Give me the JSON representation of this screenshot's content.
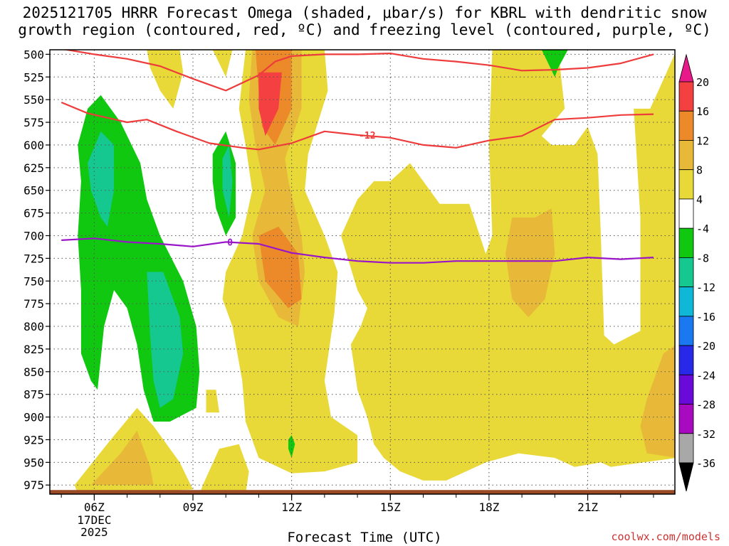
{
  "title_line1": "2025121705 HRRR Forecast Omega (shaded, μbar/s) for KBRL with dendritic snow",
  "title_line2": "growth region (contoured, red, ºC) and freezing level (contoured, purple, ºC)",
  "xlabel": "Forecast Time (UTC)",
  "credit": "coolwx.com/models",
  "date_label_day": "17DEC",
  "date_label_year": "2025",
  "colors": {
    "dgz_contour": "#ee3b3b",
    "freezing_contour": "#9a14c8",
    "ground": "#9b4a26",
    "grid": "#555555"
  },
  "chart_data": {
    "type": "heatmap",
    "title": "2025121705 HRRR Forecast Omega (shaded, μbar/s) for KBRL with dendritic snow growth region (contoured, red, ºC) and freezing level (contoured, purple, ºC)",
    "xlabel": "Forecast Time (UTC)",
    "ylabel": "",
    "x_hours": [
      5,
      6,
      7,
      8,
      9,
      10,
      11,
      12,
      13,
      14,
      15,
      16,
      17,
      18,
      19,
      20,
      21,
      22,
      23
    ],
    "x_ticks": [
      {
        "hour": 6,
        "label": "06Z"
      },
      {
        "hour": 9,
        "label": "09Z"
      },
      {
        "hour": 12,
        "label": "12Z"
      },
      {
        "hour": 15,
        "label": "15Z"
      },
      {
        "hour": 18,
        "label": "18Z"
      },
      {
        "hour": 21,
        "label": "21Z"
      }
    ],
    "y_levels": [
      500,
      525,
      550,
      575,
      600,
      625,
      650,
      675,
      700,
      725,
      750,
      775,
      800,
      825,
      850,
      875,
      900,
      925,
      950,
      975
    ],
    "y_range_mb": [
      495,
      985
    ],
    "colorbar": {
      "levels": [
        -36,
        -32,
        -28,
        -24,
        -20,
        -16,
        -12,
        -8,
        -4,
        4,
        8,
        12,
        16,
        20
      ],
      "colors": [
        "#a8a8a8",
        "#a80ac0",
        "#6a0ad8",
        "#2828e8",
        "#1a78f0",
        "#10b8d8",
        "#14c890",
        "#10c810",
        "#ffffff",
        "#e8d838",
        "#e8b838",
        "#ec8a2a",
        "#f44040",
        "#e81a8a"
      ],
      "below_color": "#000000",
      "above_color": "#e81a8a"
    },
    "contours": [
      {
        "label": "-12",
        "color": "dgz",
        "points": [
          [
            5,
            553
          ],
          [
            5.8,
            565
          ],
          [
            7,
            575
          ],
          [
            7.6,
            572
          ],
          [
            8.5,
            585
          ],
          [
            9.5,
            598
          ],
          [
            10.5,
            603
          ],
          [
            11,
            605
          ],
          [
            12,
            598
          ],
          [
            13,
            585
          ],
          [
            14,
            589
          ],
          [
            15,
            592
          ],
          [
            16,
            600
          ],
          [
            17,
            603
          ],
          [
            18,
            595
          ],
          [
            19,
            590
          ],
          [
            20,
            572
          ],
          [
            21,
            570
          ],
          [
            22,
            567
          ],
          [
            23,
            566
          ]
        ]
      },
      {
        "label": "",
        "color": "dgz",
        "points": [
          [
            5,
            494
          ],
          [
            6,
            500
          ],
          [
            7,
            505
          ],
          [
            8,
            513
          ],
          [
            9,
            527
          ],
          [
            10,
            540
          ],
          [
            11,
            523
          ],
          [
            11.5,
            508
          ],
          [
            12,
            502
          ],
          [
            13,
            500
          ],
          [
            14,
            500
          ],
          [
            15,
            499
          ],
          [
            16,
            505
          ],
          [
            17,
            508
          ],
          [
            18,
            512
          ],
          [
            19,
            518
          ],
          [
            20,
            517
          ],
          [
            21,
            515
          ],
          [
            22,
            510
          ],
          [
            23,
            500
          ]
        ]
      },
      {
        "label": "0",
        "color": "freezing",
        "points": [
          [
            5,
            705
          ],
          [
            6,
            703
          ],
          [
            7,
            707
          ],
          [
            8,
            709
          ],
          [
            9,
            712
          ],
          [
            10,
            707
          ],
          [
            11,
            709
          ],
          [
            12,
            719
          ],
          [
            13,
            724
          ],
          [
            14,
            728
          ],
          [
            15,
            730
          ],
          [
            16,
            730
          ],
          [
            17,
            728
          ],
          [
            18,
            728
          ],
          [
            19,
            728
          ],
          [
            20,
            728
          ],
          [
            21,
            724
          ],
          [
            22,
            726
          ],
          [
            23,
            724
          ]
        ]
      }
    ]
  }
}
